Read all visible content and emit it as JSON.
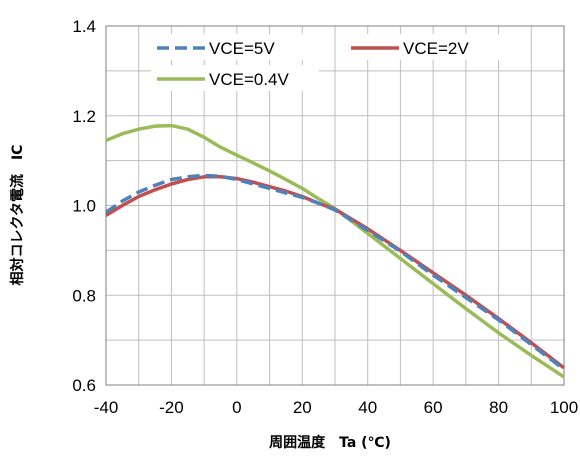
{
  "chart_data": {
    "type": "line",
    "xlabel": "周囲温度　Ta (℃)",
    "ylabel": "相対コレクタ電流　IC",
    "xlim": [
      -40,
      100
    ],
    "ylim": [
      0.6,
      1.4
    ],
    "xticks": [
      -40,
      -20,
      0,
      20,
      40,
      60,
      80,
      100
    ],
    "yticks": [
      0.6,
      0.8,
      1.0,
      1.2,
      1.4
    ],
    "xtick_labels": [
      "-40",
      "-20",
      "0",
      "20",
      "40",
      "60",
      "80",
      "100"
    ],
    "ytick_labels": [
      "0.6",
      "0.8",
      "1.0",
      "1.2",
      "1.4"
    ],
    "grid": "on",
    "legend_placement": "top",
    "series": [
      {
        "name": "VCE=5V",
        "color": "#4F81BD",
        "style": "dashed",
        "x": [
          -40,
          -35,
          -30,
          -25,
          -20,
          -15,
          -10,
          -5,
          0,
          5,
          10,
          15,
          20,
          25,
          30,
          40,
          50,
          60,
          70,
          80,
          90,
          100
        ],
        "y": [
          0.985,
          1.01,
          1.03,
          1.045,
          1.058,
          1.064,
          1.067,
          1.065,
          1.058,
          1.048,
          1.038,
          1.028,
          1.018,
          1.005,
          0.99,
          0.945,
          0.898,
          0.845,
          0.795,
          0.745,
          0.69,
          0.635
        ]
      },
      {
        "name": "VCE=2V",
        "color": "#C0504D",
        "style": "solid",
        "x": [
          -40,
          -35,
          -30,
          -25,
          -20,
          -15,
          -10,
          -5,
          0,
          5,
          10,
          15,
          20,
          25,
          30,
          40,
          50,
          60,
          70,
          80,
          90,
          100
        ],
        "y": [
          0.978,
          1.0,
          1.02,
          1.035,
          1.048,
          1.058,
          1.064,
          1.064,
          1.06,
          1.052,
          1.042,
          1.032,
          1.02,
          1.005,
          0.992,
          0.948,
          0.9,
          0.85,
          0.8,
          0.748,
          0.694,
          0.638
        ]
      },
      {
        "name": "VCE=0.4V",
        "color": "#9BBB59",
        "style": "solid",
        "x": [
          -40,
          -35,
          -30,
          -25,
          -20,
          -15,
          -10,
          -5,
          0,
          5,
          10,
          15,
          20,
          25,
          30,
          40,
          50,
          60,
          70,
          80,
          90,
          100
        ],
        "y": [
          1.145,
          1.16,
          1.17,
          1.177,
          1.178,
          1.17,
          1.152,
          1.13,
          1.112,
          1.095,
          1.077,
          1.058,
          1.038,
          1.015,
          0.993,
          0.938,
          0.882,
          0.826,
          0.77,
          0.716,
          0.666,
          0.618
        ]
      }
    ]
  }
}
